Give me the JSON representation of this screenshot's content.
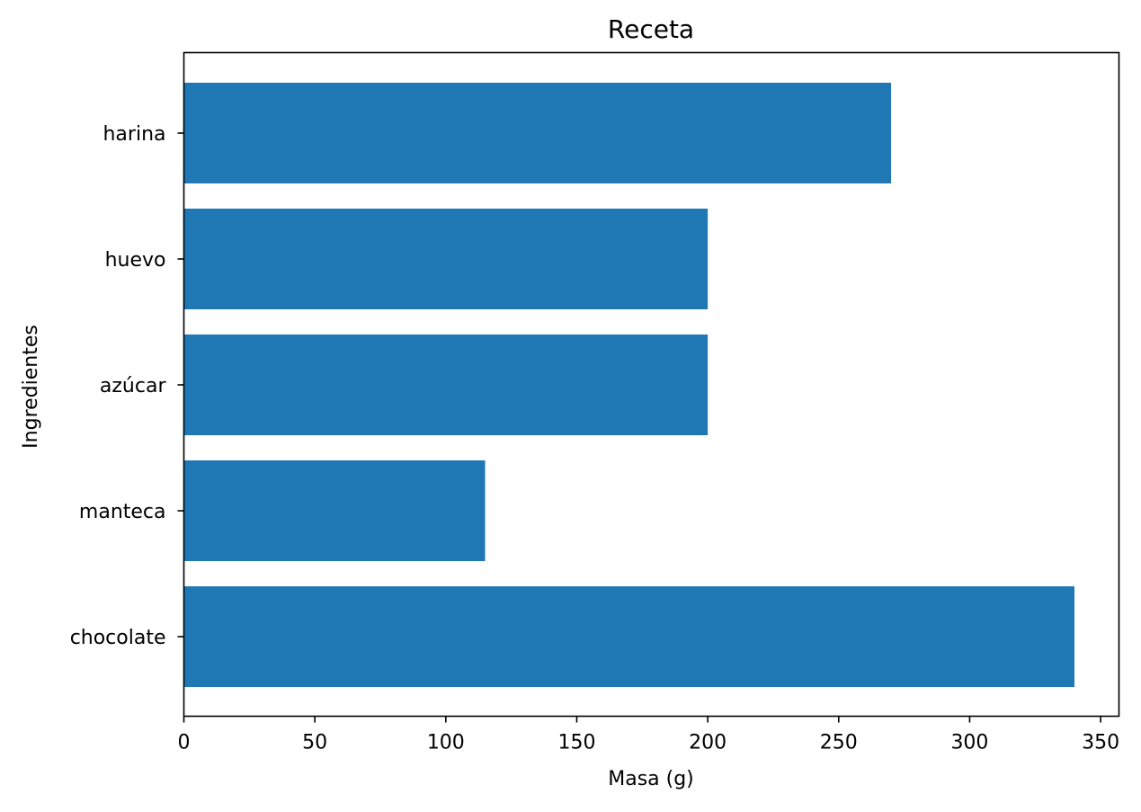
{
  "chart_data": {
    "type": "bar",
    "orientation": "horizontal",
    "title": "Receta",
    "xlabel": "Masa (g)",
    "ylabel": "Ingredientes",
    "categories": [
      "chocolate",
      "manteca",
      "azúcar",
      "huevo",
      "harina"
    ],
    "values": [
      340,
      115,
      200,
      200,
      270
    ],
    "xlim": [
      0,
      357
    ],
    "xticks": [
      0,
      50,
      100,
      150,
      200,
      250,
      300,
      350
    ],
    "xtick_labels": [
      "0",
      "50",
      "100",
      "150",
      "200",
      "250",
      "300",
      "350"
    ],
    "grid": false,
    "legend": "none",
    "bar_color": "#1f77b4"
  }
}
